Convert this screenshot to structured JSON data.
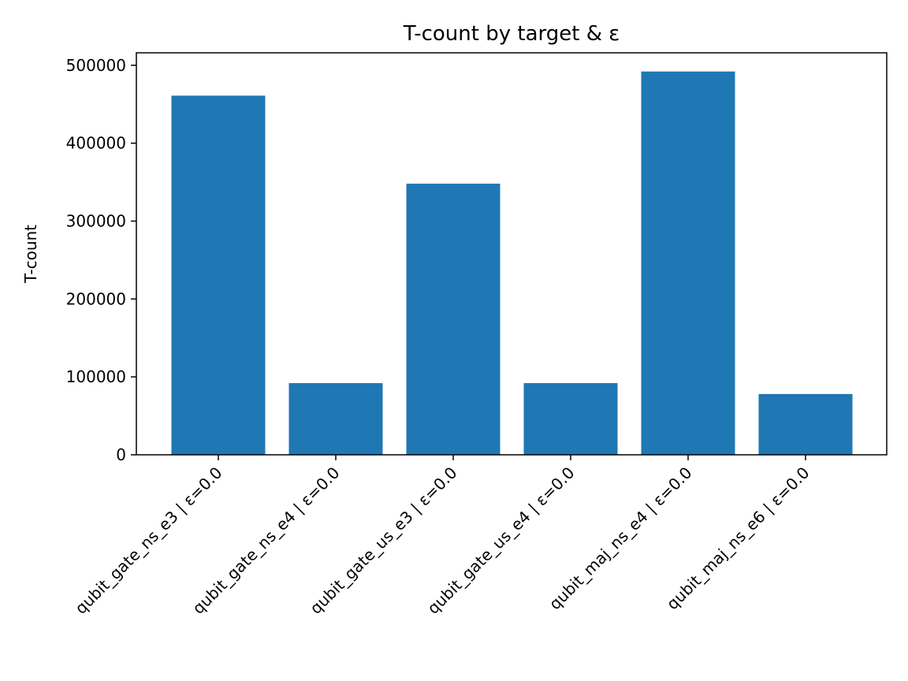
{
  "chart_data": {
    "type": "bar",
    "title": "T-count by target & ε",
    "xlabel": "",
    "ylabel": "T-count",
    "categories": [
      "qubit_gate_ns_e3 | ε=0.0",
      "qubit_gate_ns_e4 | ε=0.0",
      "qubit_gate_us_e3 | ε=0.0",
      "qubit_gate_us_e4 | ε=0.0",
      "qubit_maj_ns_e4 | ε=0.0",
      "qubit_maj_ns_e6 | ε=0.0"
    ],
    "values": [
      461000,
      92000,
      348000,
      92000,
      492000,
      78000
    ],
    "ylim": [
      0,
      516000
    ],
    "yticks": [
      0,
      100000,
      200000,
      300000,
      400000,
      500000
    ],
    "ytick_labels": [
      "0",
      "100000",
      "200000",
      "300000",
      "400000",
      "500000"
    ],
    "bar_color": "#1f77b4",
    "grid": false,
    "legend": false
  }
}
